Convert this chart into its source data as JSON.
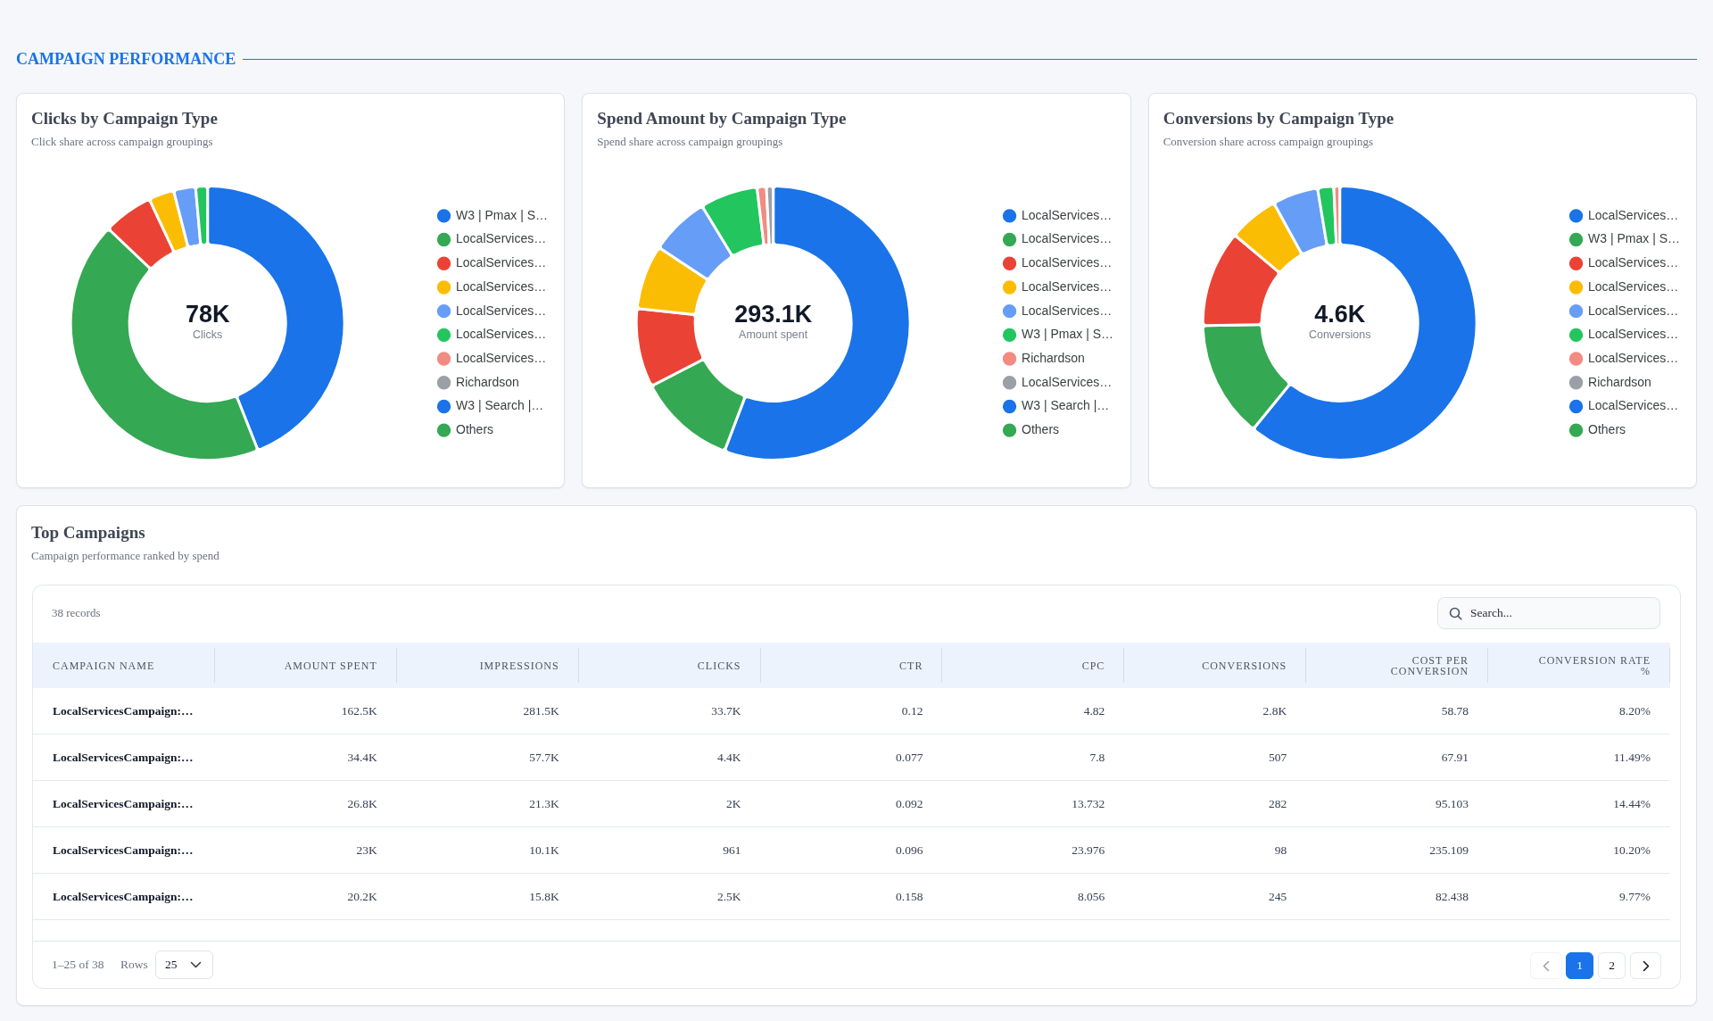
{
  "chart_data": [
    {
      "type": "other",
      "title": "CAMPAIGN PERFORMANCE"
    },
    {
      "type": "donut",
      "title": "Clicks by Campaign Type",
      "subtitle": "Click share across campaign groupings",
      "categories": [
        "W3 | Pmax | S…",
        "LocalServices…",
        "LocalServices…",
        "LocalServices…",
        "LocalServices…",
        "LocalServices…",
        "LocalServices…",
        "Richardson",
        "W3 | Search |…",
        "Others"
      ],
      "values": [
        44.0,
        43.1,
        5.9,
        3.0,
        2.6,
        1.4,
        null,
        null,
        null,
        null
      ],
      "colors": [
        "#1a73e8",
        "#34a853",
        "#ea4335",
        "#fbbc04",
        "#669df6",
        "#22c55e",
        "#f28b82",
        "#9aa0a6",
        "#1a73e8",
        "#34a853"
      ],
      "legend": "right",
      "annotations": [
        "78K",
        "Clicks"
      ]
    },
    {
      "type": "donut",
      "title": "Spend Amount by Campaign Type",
      "subtitle": "Spend share across campaign groupings",
      "categories": [
        "LocalServices…",
        "LocalServices…",
        "LocalServices…",
        "LocalServices…",
        "LocalServices…",
        "W3 | Pmax | S…",
        "Richardson",
        "LocalServices…",
        "W3 | Search |…",
        "Others"
      ],
      "values": [
        55.8,
        11.6,
        9.3,
        7.6,
        7.0,
        6.8,
        1.1,
        0.8,
        null,
        null
      ],
      "colors": [
        "#1a73e8",
        "#34a853",
        "#ea4335",
        "#fbbc04",
        "#669df6",
        "#22c55e",
        "#f28b82",
        "#9aa0a6",
        "#1a73e8",
        "#34a853"
      ],
      "legend": "right",
      "annotations": [
        "293.1K",
        "Amount spent"
      ]
    },
    {
      "type": "donut",
      "title": "Conversions by Campaign Type",
      "subtitle": "Conversion share across campaign groupings",
      "categories": [
        "LocalServices…",
        "W3 | Pmax | S…",
        "LocalServices…",
        "LocalServices…",
        "LocalServices…",
        "LocalServices…",
        "LocalServices…",
        "Richardson",
        "LocalServices…",
        "Others"
      ],
      "values": [
        60.9,
        13.8,
        11.4,
        5.9,
        5.4,
        1.9,
        0.7,
        null,
        null,
        null
      ],
      "colors": [
        "#1a73e8",
        "#34a853",
        "#ea4335",
        "#fbbc04",
        "#669df6",
        "#22c55e",
        "#f28b82",
        "#9aa0a6",
        "#1a73e8",
        "#34a853"
      ],
      "legend": "right",
      "annotations": [
        "4.6K",
        "Conversions"
      ]
    },
    {
      "type": "other",
      "title": "Top Campaigns",
      "subtitle": "Campaign performance ranked by spend",
      "categories": [
        "CAMPAIGN NAME",
        "AMOUNT SPENT",
        "IMPRESSIONS",
        "CLICKS",
        "CTR",
        "CPC",
        "CONVERSIONS",
        "COST PER CONVERSION",
        "CONVERSION RATE %"
      ],
      "cell_labels": [
        [
          "LocalServicesCampaign:…",
          "162.5K",
          "281.5K",
          "33.7K",
          "0.12",
          "4.82",
          "2.8K",
          "58.78",
          "8.20%"
        ],
        [
          "LocalServicesCampaign:…",
          "34.4K",
          "57.7K",
          "4.4K",
          "0.077",
          "7.8",
          "507",
          "67.91",
          "11.49%"
        ],
        [
          "LocalServicesCampaign:…",
          "26.8K",
          "21.3K",
          "2K",
          "0.092",
          "13.732",
          "282",
          "95.103",
          "14.44%"
        ],
        [
          "LocalServicesCampaign:…",
          "23K",
          "10.1K",
          "961",
          "0.096",
          "23.976",
          "98",
          "235.109",
          "10.20%"
        ],
        [
          "LocalServicesCampaign:…",
          "20.2K",
          "15.8K",
          "2.5K",
          "0.158",
          "8.056",
          "245",
          "82.438",
          "9.77%"
        ]
      ],
      "annotations": [
        "38 records",
        "Search...",
        "1–25 of 38",
        "Rows",
        "25",
        "1",
        "2"
      ]
    }
  ]
}
